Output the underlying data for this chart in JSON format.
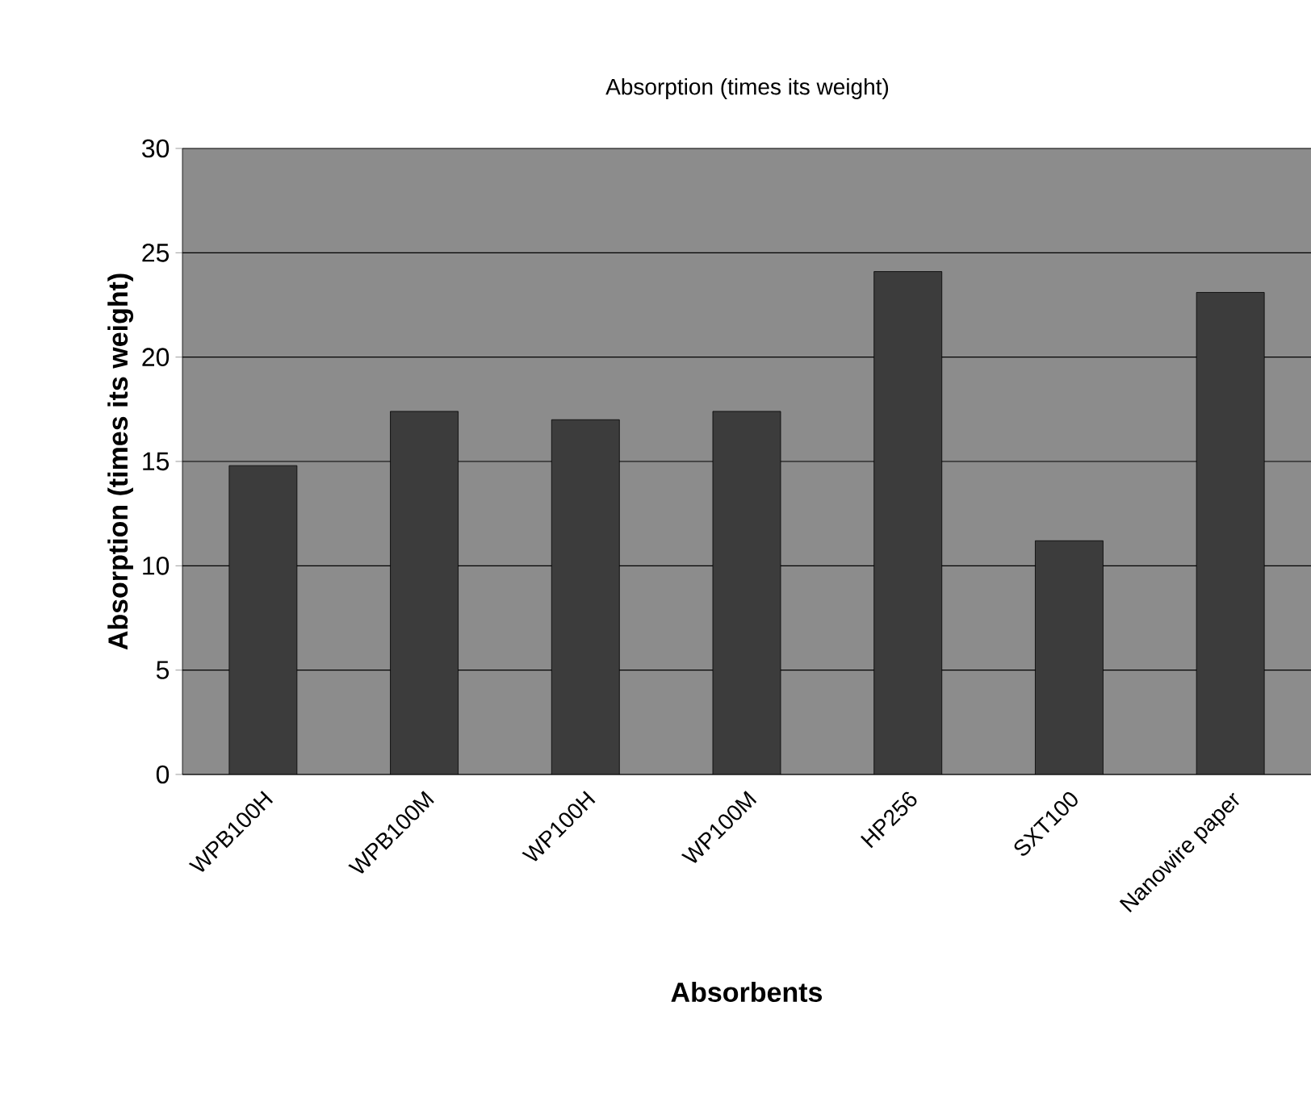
{
  "chart_data": {
    "type": "bar",
    "title": "Absorption (times its weight)",
    "xlabel": "Absorbents",
    "ylabel": "Absorption (times its weight)",
    "categories": [
      "WPB100H",
      "WPB100M",
      "WP100H",
      "WP100M",
      "HP256",
      "SXT100",
      "Nanowire paper"
    ],
    "values": [
      14.8,
      17.4,
      17.0,
      17.4,
      24.1,
      11.2,
      23.1
    ],
    "color": "#3c3c3c",
    "ylim": [
      0,
      30
    ],
    "yticks": [
      0,
      5,
      10,
      15,
      20,
      25,
      30
    ],
    "grid": "y"
  }
}
